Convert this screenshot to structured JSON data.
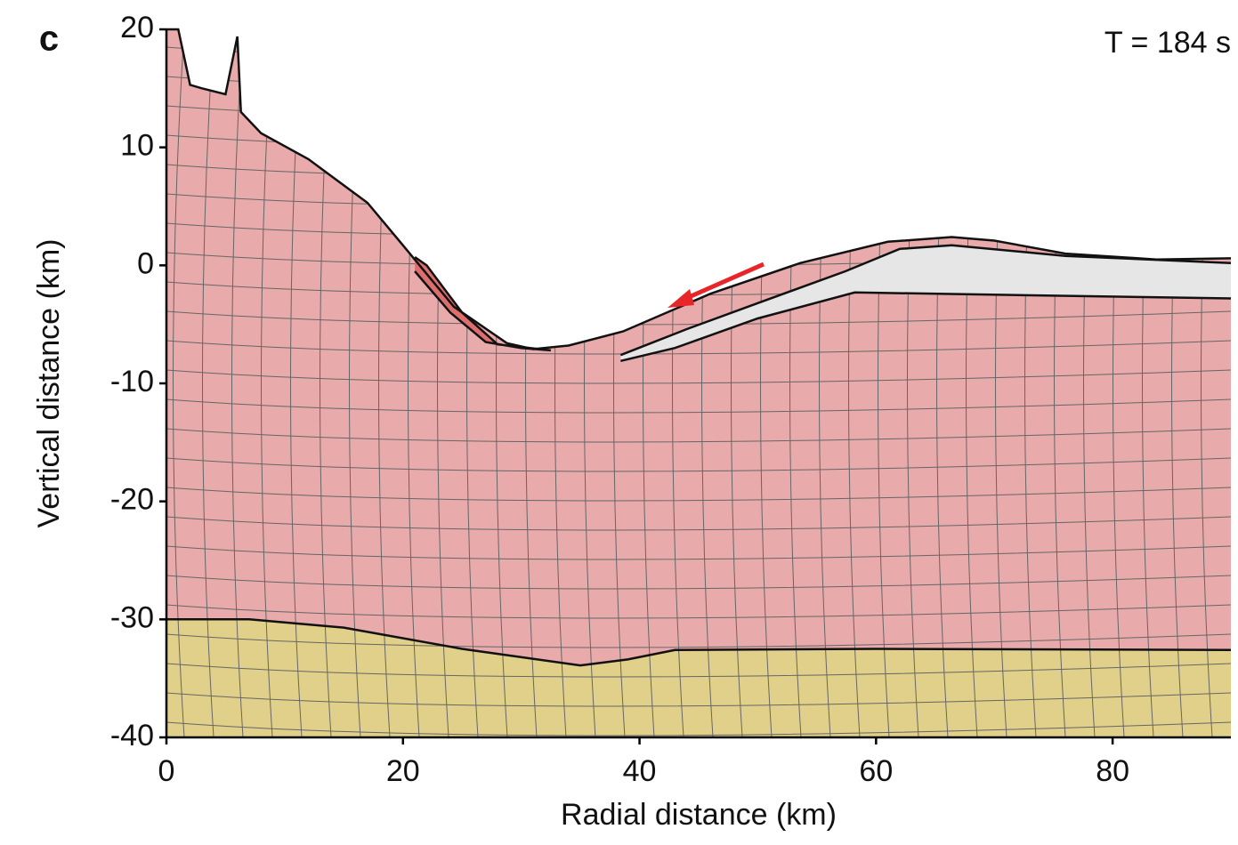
{
  "chart_data": {
    "type": "cross-section",
    "panel_label": "c",
    "annotation": "T = 184 s",
    "xlabel": "Radial distance (km)",
    "ylabel": "Vertical distance (km)",
    "xlim": [
      0,
      90
    ],
    "ylim": [
      -40,
      20
    ],
    "xticks": [
      0,
      20,
      40,
      60,
      80
    ],
    "yticks": [
      20,
      10,
      0,
      -10,
      -20,
      -30,
      -40
    ],
    "series": [
      {
        "color": "#e8aaaa",
        "x": [
          0,
          1,
          2,
          3,
          5,
          6,
          6.3,
          8,
          12,
          17,
          20,
          24.3,
          28.8,
          31,
          34,
          38.6,
          46,
          53.6,
          61,
          66.4,
          70,
          76,
          83.7,
          90
        ],
        "y": [
          20,
          20,
          15.3,
          15,
          14.5,
          19.4,
          13,
          11.2,
          9,
          5.3,
          1.7,
          -3.5,
          -6.6,
          -7.1,
          -6.8,
          -5.6,
          -2.4,
          0.2,
          2,
          2.4,
          2.1,
          1,
          0.5,
          0.6
        ]
      },
      {
        "color": "#e0d08a",
        "x": [
          0,
          7,
          15,
          25,
          35,
          39,
          43,
          60,
          90
        ],
        "y": [
          -30,
          -30,
          -30.7,
          -32.5,
          -33.9,
          -33.4,
          -32.6,
          -32.5,
          -32.6
        ]
      },
      {
        "color": "#e6e6e6",
        "x": [
          38.4,
          44,
          50,
          57.4,
          62,
          66.4,
          76,
          90
        ],
        "y": [
          -7.6,
          -5.4,
          -3.2,
          -0.5,
          1.4,
          1.7,
          0.8,
          0.2
        ]
      },
      {
        "color": "#e6e6e6",
        "x": [
          38.4,
          43,
          50,
          58.2,
          90
        ],
        "y": [
          -8.1,
          -7,
          -4.5,
          -2.3,
          -2.8
        ]
      },
      {
        "color": "#dd6e6e",
        "x": [
          21,
          22,
          25,
          28,
          32.5,
          30,
          27,
          24,
          21
        ],
        "y": [
          0.7,
          0,
          -4,
          -6.7,
          -7.2,
          -7,
          -6.5,
          -4,
          -0.5
        ]
      }
    ]
  }
}
